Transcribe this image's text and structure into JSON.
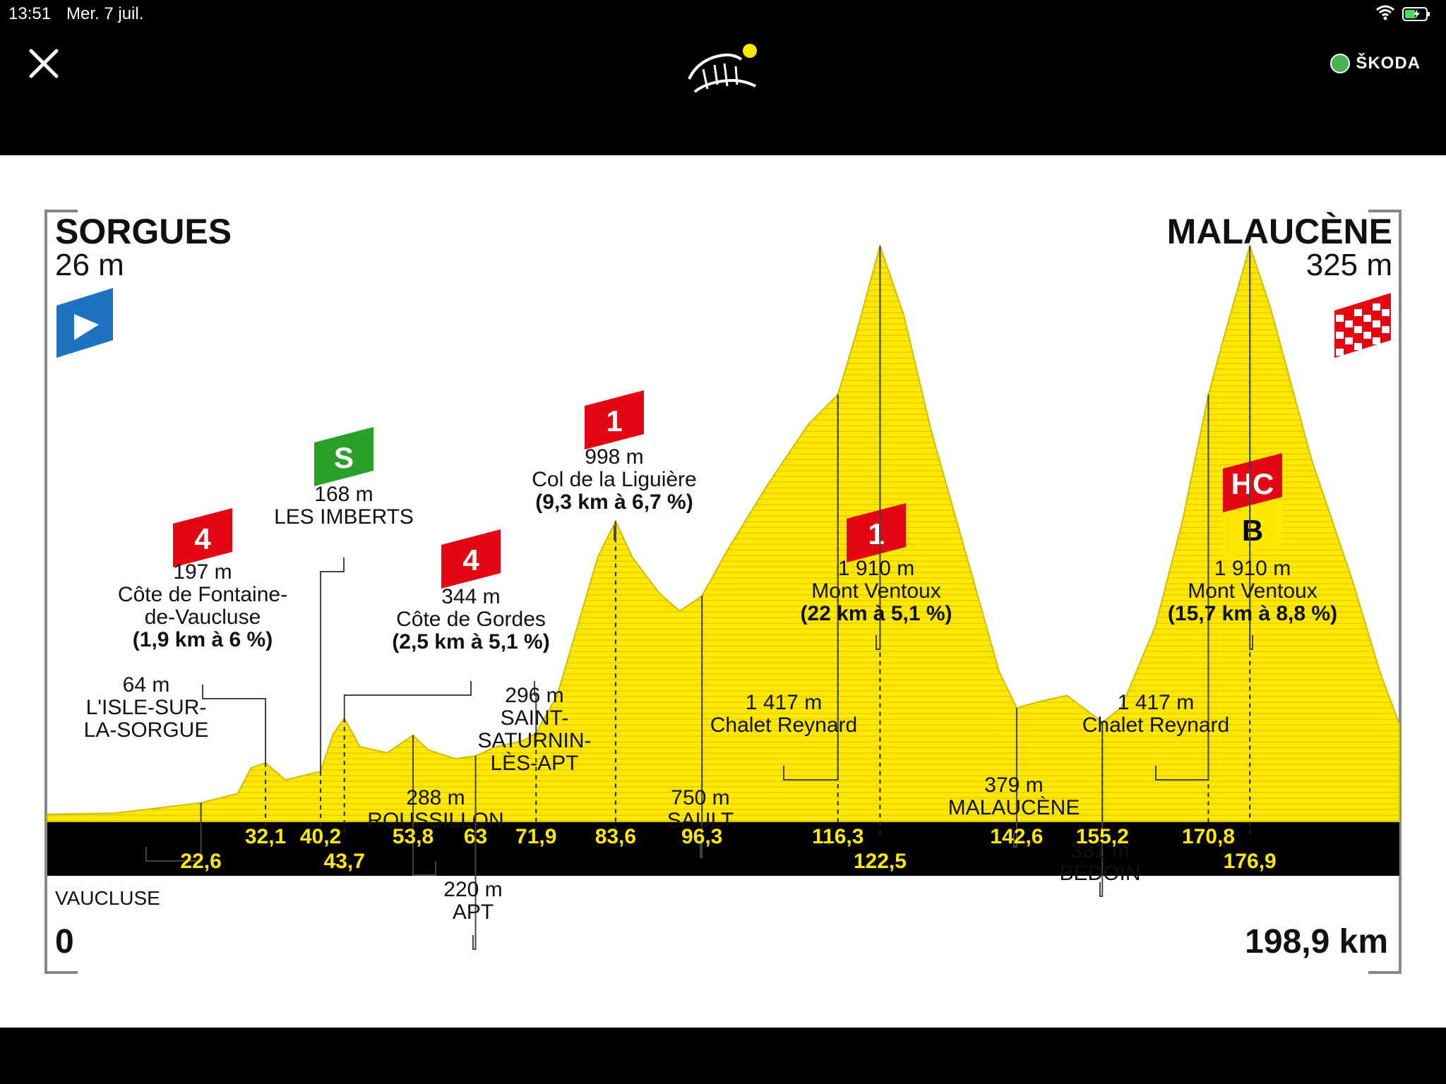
{
  "status_bar": {
    "time": "13:51",
    "date": "Mer. 7 juil."
  },
  "header": {
    "sponsor": "ŠKODA",
    "logo_alt": "Tour de France"
  },
  "profile": {
    "start_name": "SORGUES",
    "start_alt": "26 m",
    "finish_name": "MALAUCÈNE",
    "finish_alt": "325 m",
    "region": "VAUCLUSE",
    "start_km": "0",
    "end_km": "198,9 km",
    "colors": {
      "terrain": "#ffe800",
      "terrain_line": "#d2be00",
      "cat": "#e30613",
      "sprint": "#2aa02a",
      "start": "#1e73be",
      "bonus": "#ffe800"
    }
  },
  "waypoints": [
    {
      "alt": "64 m",
      "name": "L'ISLE-SUR-\nLA-SORGUE",
      "km": "22,6",
      "type": "town"
    },
    {
      "alt": "197 m",
      "name": "Côte de Fontaine-\nde-Vaucluse",
      "detail": "(1,9 km à 6 %)",
      "km": "32,1",
      "type": "climb",
      "cat": "4"
    },
    {
      "alt": "168 m",
      "name": "LES IMBERTS",
      "km": "40,2",
      "type": "sprint",
      "cat": "S"
    },
    {
      "alt": "344 m",
      "name": "Côte de Gordes",
      "detail": "(2,5 km à 5,1 %)",
      "km": "43,7",
      "type": "climb",
      "cat": "4"
    },
    {
      "alt": "288 m",
      "name": "ROUSSILLON",
      "km": "53,8",
      "type": "town"
    },
    {
      "alt": "220 m",
      "name": "APT",
      "km": "63",
      "type": "town"
    },
    {
      "alt": "296 m",
      "name": "SAINT-\nSATURNIN-\nLÈS-APT",
      "km": "71,9",
      "type": "town"
    },
    {
      "alt": "998 m",
      "name": "Col de la Liguière",
      "detail": "(9,3 km à 6,7 %)",
      "km": "83,6",
      "type": "climb",
      "cat": "1"
    },
    {
      "alt": "750 m",
      "name": "SAULT",
      "km": "96,3",
      "type": "town"
    },
    {
      "alt": "1 417 m",
      "name": "Chalet Reynard",
      "km": "116,3",
      "type": "town"
    },
    {
      "alt": "1 910 m",
      "name": "Mont Ventoux",
      "detail": "(22 km à 5,1 %)",
      "km": "122,5",
      "type": "climb",
      "cat": "1"
    },
    {
      "alt": "379 m",
      "name": "MALAUCÈNE",
      "km": "142,6",
      "type": "town"
    },
    {
      "alt": "331 m",
      "name": "BÉDOIN",
      "km": "155,2",
      "type": "town"
    },
    {
      "alt": "1 417 m",
      "name": "Chalet Reynard",
      "km": "170,8",
      "type": "town"
    },
    {
      "alt": "1 910 m",
      "name": "Mont Ventoux",
      "detail": "(15,7 km à 8,8 %)",
      "km": "176,9",
      "type": "climb",
      "cat": "HC",
      "bonus": "B"
    }
  ],
  "chart_data": {
    "type": "area",
    "title": "",
    "xlabel": "",
    "ylabel": "",
    "x": [
      0,
      10,
      22.6,
      28,
      30,
      32.1,
      35,
      40.2,
      42,
      43.7,
      46,
      50,
      53.8,
      56,
      60,
      63,
      66,
      70,
      71.9,
      75,
      78,
      81,
      83.6,
      86,
      90,
      93,
      96.3,
      100,
      106,
      112,
      116.3,
      119,
      122.5,
      126,
      130,
      135,
      140,
      142.6,
      146,
      150,
      155.2,
      158,
      163,
      167,
      170.8,
      173,
      176.9,
      180,
      186,
      192,
      196,
      198.9
    ],
    "y": [
      26,
      30,
      64,
      95,
      180,
      197,
      140,
      168,
      290,
      344,
      250,
      230,
      288,
      240,
      210,
      220,
      250,
      270,
      296,
      420,
      650,
      880,
      998,
      880,
      760,
      700,
      750,
      900,
      1120,
      1320,
      1417,
      1620,
      1910,
      1680,
      1300,
      900,
      500,
      379,
      400,
      420,
      331,
      380,
      650,
      1000,
      1417,
      1600,
      1910,
      1700,
      1200,
      800,
      500,
      325
    ],
    "xlim": [
      0,
      198.9
    ],
    "ylim": [
      0,
      2000
    ]
  }
}
